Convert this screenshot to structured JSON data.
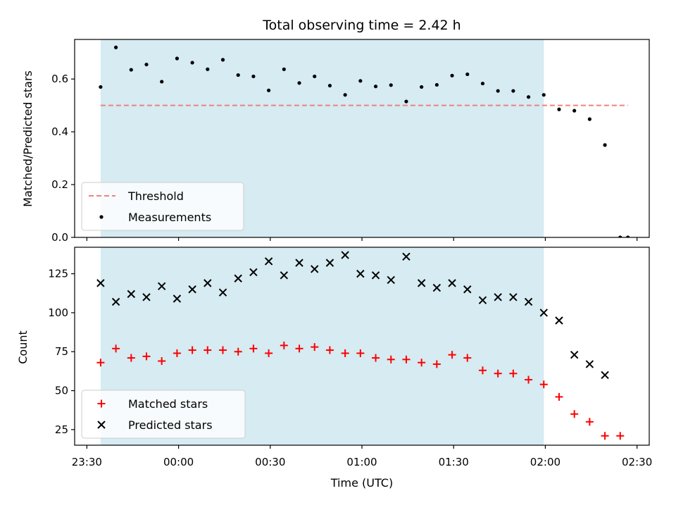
{
  "title": "Total observing time = 2.42 h",
  "x_axis": {
    "label": "Time (UTC)",
    "tick_labels": [
      "23:30",
      "00:00",
      "00:30",
      "01:00",
      "01:30",
      "02:00",
      "02:30"
    ]
  },
  "colors": {
    "shaded_span": "#add8e6",
    "threshold": "#f08080",
    "measurements": "#000000",
    "matched": "#ff0000",
    "predicted": "#000000"
  },
  "chart_data": [
    {
      "type": "scatter",
      "panel": "top",
      "ylabel": "Matched/Predicted stars",
      "xlim_minutes_from_2330": [
        -4,
        184
      ],
      "ylim": [
        0,
        0.75
      ],
      "y_ticks": [
        0.0,
        0.2,
        0.4,
        0.6
      ],
      "y_tick_labels": [
        "0.0",
        "0.2",
        "0.4",
        "0.6"
      ],
      "shaded_span_minutes": [
        4.5,
        149.5
      ],
      "threshold": {
        "name": "Threshold",
        "y": 0.5,
        "x_range": [
          4.5,
          177
        ]
      },
      "legend_position": "lower-left",
      "series": [
        {
          "name": "Measurements",
          "x": [
            4.5,
            9.5,
            14.5,
            19.5,
            24.5,
            29.5,
            34.5,
            39.5,
            44.5,
            49.5,
            54.5,
            59.5,
            64.5,
            69.5,
            74.5,
            79.5,
            84.5,
            89.5,
            94.5,
            99.5,
            104.5,
            109.5,
            114.5,
            119.5,
            124.5,
            129.5,
            134.5,
            139.5,
            144.5,
            149.5,
            154.5,
            159.5,
            164.5,
            169.5,
            174.5,
            177
          ],
          "y": [
            0.57,
            0.72,
            0.635,
            0.655,
            0.59,
            0.678,
            0.662,
            0.637,
            0.673,
            0.615,
            0.61,
            0.557,
            0.637,
            0.585,
            0.61,
            0.575,
            0.54,
            0.593,
            0.572,
            0.577,
            0.515,
            0.57,
            0.578,
            0.613,
            0.618,
            0.583,
            0.555,
            0.555,
            0.532,
            0.54,
            0.485,
            0.48,
            0.448,
            0.35,
            0.0,
            0.0
          ]
        }
      ]
    },
    {
      "type": "scatter",
      "panel": "bottom",
      "ylabel": "Count",
      "xlim_minutes_from_2330": [
        -4,
        184
      ],
      "ylim": [
        15,
        142
      ],
      "y_ticks": [
        25,
        50,
        75,
        100,
        125
      ],
      "y_tick_labels": [
        "25",
        "50",
        "75",
        "100",
        "125"
      ],
      "shaded_span_minutes": [
        4.5,
        149.5
      ],
      "legend_position": "lower-left",
      "series": [
        {
          "name": "Matched stars",
          "marker": "plus",
          "x": [
            4.5,
            9.5,
            14.5,
            19.5,
            24.5,
            29.5,
            34.5,
            39.5,
            44.5,
            49.5,
            54.5,
            59.5,
            64.5,
            69.5,
            74.5,
            79.5,
            84.5,
            89.5,
            94.5,
            99.5,
            104.5,
            109.5,
            114.5,
            119.5,
            124.5,
            129.5,
            134.5,
            139.5,
            144.5,
            149.5,
            154.5,
            159.5,
            164.5,
            169.5,
            174.5
          ],
          "y": [
            68,
            77,
            71,
            72,
            69,
            74,
            76,
            76,
            76,
            75,
            77,
            74,
            79,
            77,
            78,
            76,
            74,
            74,
            71,
            70,
            70,
            68,
            67,
            73,
            71,
            63,
            61,
            61,
            57,
            54,
            46,
            35,
            30,
            21,
            21
          ]
        },
        {
          "name": "Predicted stars",
          "marker": "x",
          "x": [
            4.5,
            9.5,
            14.5,
            19.5,
            24.5,
            29.5,
            34.5,
            39.5,
            44.5,
            49.5,
            54.5,
            59.5,
            64.5,
            69.5,
            74.5,
            79.5,
            84.5,
            89.5,
            94.5,
            99.5,
            104.5,
            109.5,
            114.5,
            119.5,
            124.5,
            129.5,
            134.5,
            139.5,
            144.5,
            149.5,
            154.5,
            159.5,
            164.5,
            169.5
          ],
          "y": [
            119,
            107,
            112,
            110,
            117,
            109,
            115,
            119,
            113,
            122,
            126,
            133,
            124,
            132,
            128,
            132,
            137,
            125,
            124,
            121,
            136,
            119,
            116,
            119,
            115,
            108,
            110,
            110,
            107,
            100,
            95,
            73,
            67,
            60
          ]
        }
      ]
    }
  ]
}
